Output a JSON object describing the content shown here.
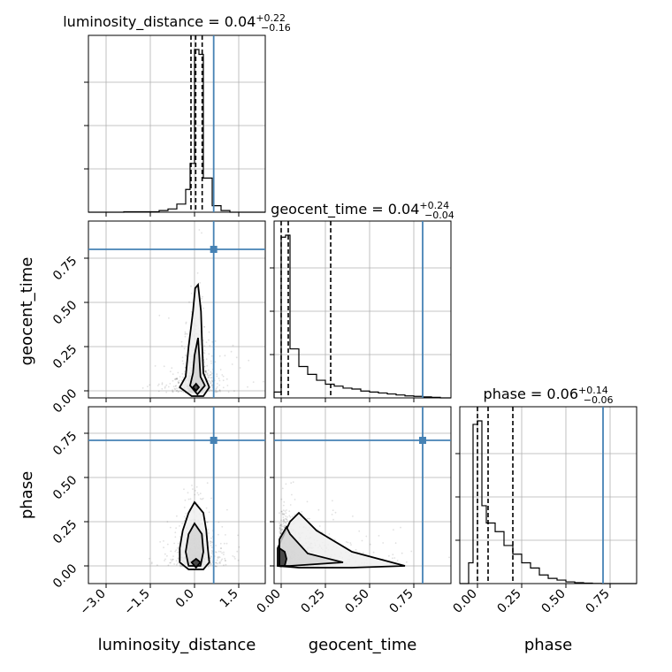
{
  "chart_data": {
    "type": "scatter",
    "title": "",
    "parameters": [
      "luminosity_distance",
      "geocent_time",
      "phase"
    ],
    "axis_labels": [
      "luminosity_distance",
      "geocent_time",
      "phase"
    ],
    "ranges": {
      "luminosity_distance": [
        -3.6,
        2.4
      ],
      "geocent_time": [
        -0.04,
        0.96
      ],
      "phase": [
        -0.1,
        0.9
      ]
    },
    "ticks": {
      "luminosity_distance": [
        "-3.0",
        "-1.5",
        "0.0",
        "1.5"
      ],
      "geocent_time": [
        "0.00",
        "0.25",
        "0.50",
        "0.75"
      ],
      "phase": [
        "0.00",
        "0.25",
        "0.50",
        "0.75"
      ]
    },
    "truths": {
      "luminosity_distance": 0.65,
      "geocent_time": 0.8,
      "phase": 0.71
    },
    "summaries": [
      {
        "name": "luminosity_distance",
        "median": "0.04",
        "plus": "+0.22",
        "minus": "−0.16",
        "quantiles": [
          -0.12,
          0.04,
          0.26
        ]
      },
      {
        "name": "geocent_time",
        "median": "0.04",
        "plus": "+0.24",
        "minus": "−0.04",
        "quantiles": 0.0
      },
      {
        "name": "phase",
        "median": "0.06",
        "plus": "+0.14",
        "minus": "−0.06",
        "quantiles": [
          0.0,
          0.06,
          0.2
        ]
      }
    ],
    "histograms": {
      "luminosity_distance": {
        "edges": [
          -3.6,
          -2.4,
          -1.2,
          -0.9,
          -0.6,
          -0.3,
          -0.15,
          0.0,
          0.15,
          0.3,
          0.6,
          0.9,
          1.2,
          2.4
        ],
        "values": [
          0,
          0.003,
          0.01,
          0.02,
          0.05,
          0.14,
          0.3,
          1.0,
          0.97,
          0.21,
          0.04,
          0.01,
          0
        ]
      },
      "geocent_time": {
        "edges": [
          -0.04,
          0.0,
          0.025,
          0.05,
          0.1,
          0.15,
          0.2,
          0.25,
          0.3,
          0.35,
          0.4,
          0.45,
          0.5,
          0.55,
          0.6,
          0.65,
          0.7,
          0.75,
          0.8,
          0.85,
          0.9,
          0.96
        ],
        "values": [
          0.03,
          0.82,
          0.83,
          0.25,
          0.16,
          0.12,
          0.09,
          0.07,
          0.06,
          0.05,
          0.045,
          0.035,
          0.03,
          0.025,
          0.02,
          0.015,
          0.01,
          0.008,
          0.005,
          0.003,
          0
        ]
      },
      "phase": {
        "edges": [
          -0.1,
          -0.05,
          -0.025,
          0.0,
          0.025,
          0.05,
          0.1,
          0.15,
          0.2,
          0.25,
          0.3,
          0.35,
          0.4,
          0.45,
          0.5,
          0.55,
          0.6,
          0.65,
          0.7,
          0.9
        ],
        "values": [
          0,
          0.12,
          0.92,
          0.94,
          0.45,
          0.35,
          0.3,
          0.22,
          0.17,
          0.12,
          0.09,
          0.05,
          0.03,
          0.02,
          0.01,
          0.005,
          0.003,
          0.001,
          0
        ]
      }
    },
    "contours_2d": {
      "geocent_time_vs_luminosity_distance": [
        {
          "level": "outer",
          "x": [
            0.12,
            0.22,
            0.25,
            0.3,
            0.5,
            0.3,
            -0.1,
            -0.5,
            -0.3,
            -0.2,
            -0.05,
            0.02,
            0.12
          ],
          "y": [
            0.6,
            0.45,
            0.3,
            0.1,
            0.02,
            -0.03,
            -0.03,
            0.02,
            0.08,
            0.25,
            0.45,
            0.58,
            0.6
          ]
        },
        {
          "level": "inner",
          "x": [
            0.12,
            0.16,
            0.2,
            0.35,
            0.1,
            -0.15,
            -0.05,
            0.0,
            0.12
          ],
          "y": [
            0.3,
            0.2,
            0.08,
            0.03,
            -0.02,
            0.03,
            0.1,
            0.2,
            0.3
          ]
        },
        {
          "level": "core",
          "x": [
            0.05,
            0.15,
            0.05,
            -0.05,
            0.05
          ],
          "y": [
            0.04,
            0.02,
            0.0,
            0.02,
            0.04
          ]
        }
      ],
      "phase_vs_luminosity_distance": [
        {
          "level": "outer",
          "x": [
            0.0,
            0.3,
            0.4,
            0.45,
            0.5,
            0.3,
            -0.2,
            -0.5,
            -0.5,
            -0.4,
            -0.2,
            0.0
          ],
          "y": [
            0.36,
            0.3,
            0.2,
            0.1,
            0.02,
            -0.02,
            -0.02,
            0.02,
            0.1,
            0.2,
            0.3,
            0.36
          ]
        },
        {
          "level": "inner",
          "x": [
            0.0,
            0.25,
            0.3,
            0.2,
            -0.2,
            -0.3,
            -0.2,
            0.0
          ],
          "y": [
            0.24,
            0.18,
            0.08,
            0.0,
            0.0,
            0.08,
            0.18,
            0.24
          ]
        },
        {
          "level": "core",
          "x": [
            0.05,
            0.2,
            0.05,
            -0.1,
            0.05
          ],
          "y": [
            0.04,
            0.02,
            -0.01,
            0.02,
            0.04
          ]
        }
      ],
      "phase_vs_geocent_time": [
        {
          "level": "outer",
          "x": [
            -0.02,
            0.05,
            0.1,
            0.2,
            0.4,
            0.7,
            0.4,
            0.1,
            -0.02,
            -0.02
          ],
          "y": [
            0.1,
            0.25,
            0.3,
            0.2,
            0.08,
            0.0,
            -0.01,
            -0.01,
            0.0,
            0.1
          ]
        },
        {
          "level": "inner",
          "x": [
            -0.01,
            0.03,
            0.05,
            0.15,
            0.35,
            0.05,
            -0.01,
            -0.01
          ],
          "y": [
            0.15,
            0.22,
            0.18,
            0.07,
            0.02,
            0.0,
            0.0,
            0.15
          ]
        },
        {
          "level": "core",
          "x": [
            -0.01,
            0.02,
            0.03,
            0.02,
            -0.01,
            -0.01
          ],
          "y": [
            0.1,
            0.08,
            0.04,
            0.0,
            0.0,
            0.1
          ]
        }
      ]
    },
    "samples": {
      "count_per_panel": 1500,
      "note_visible": false
    },
    "grid": true,
    "truth_color": "#4682b4"
  }
}
